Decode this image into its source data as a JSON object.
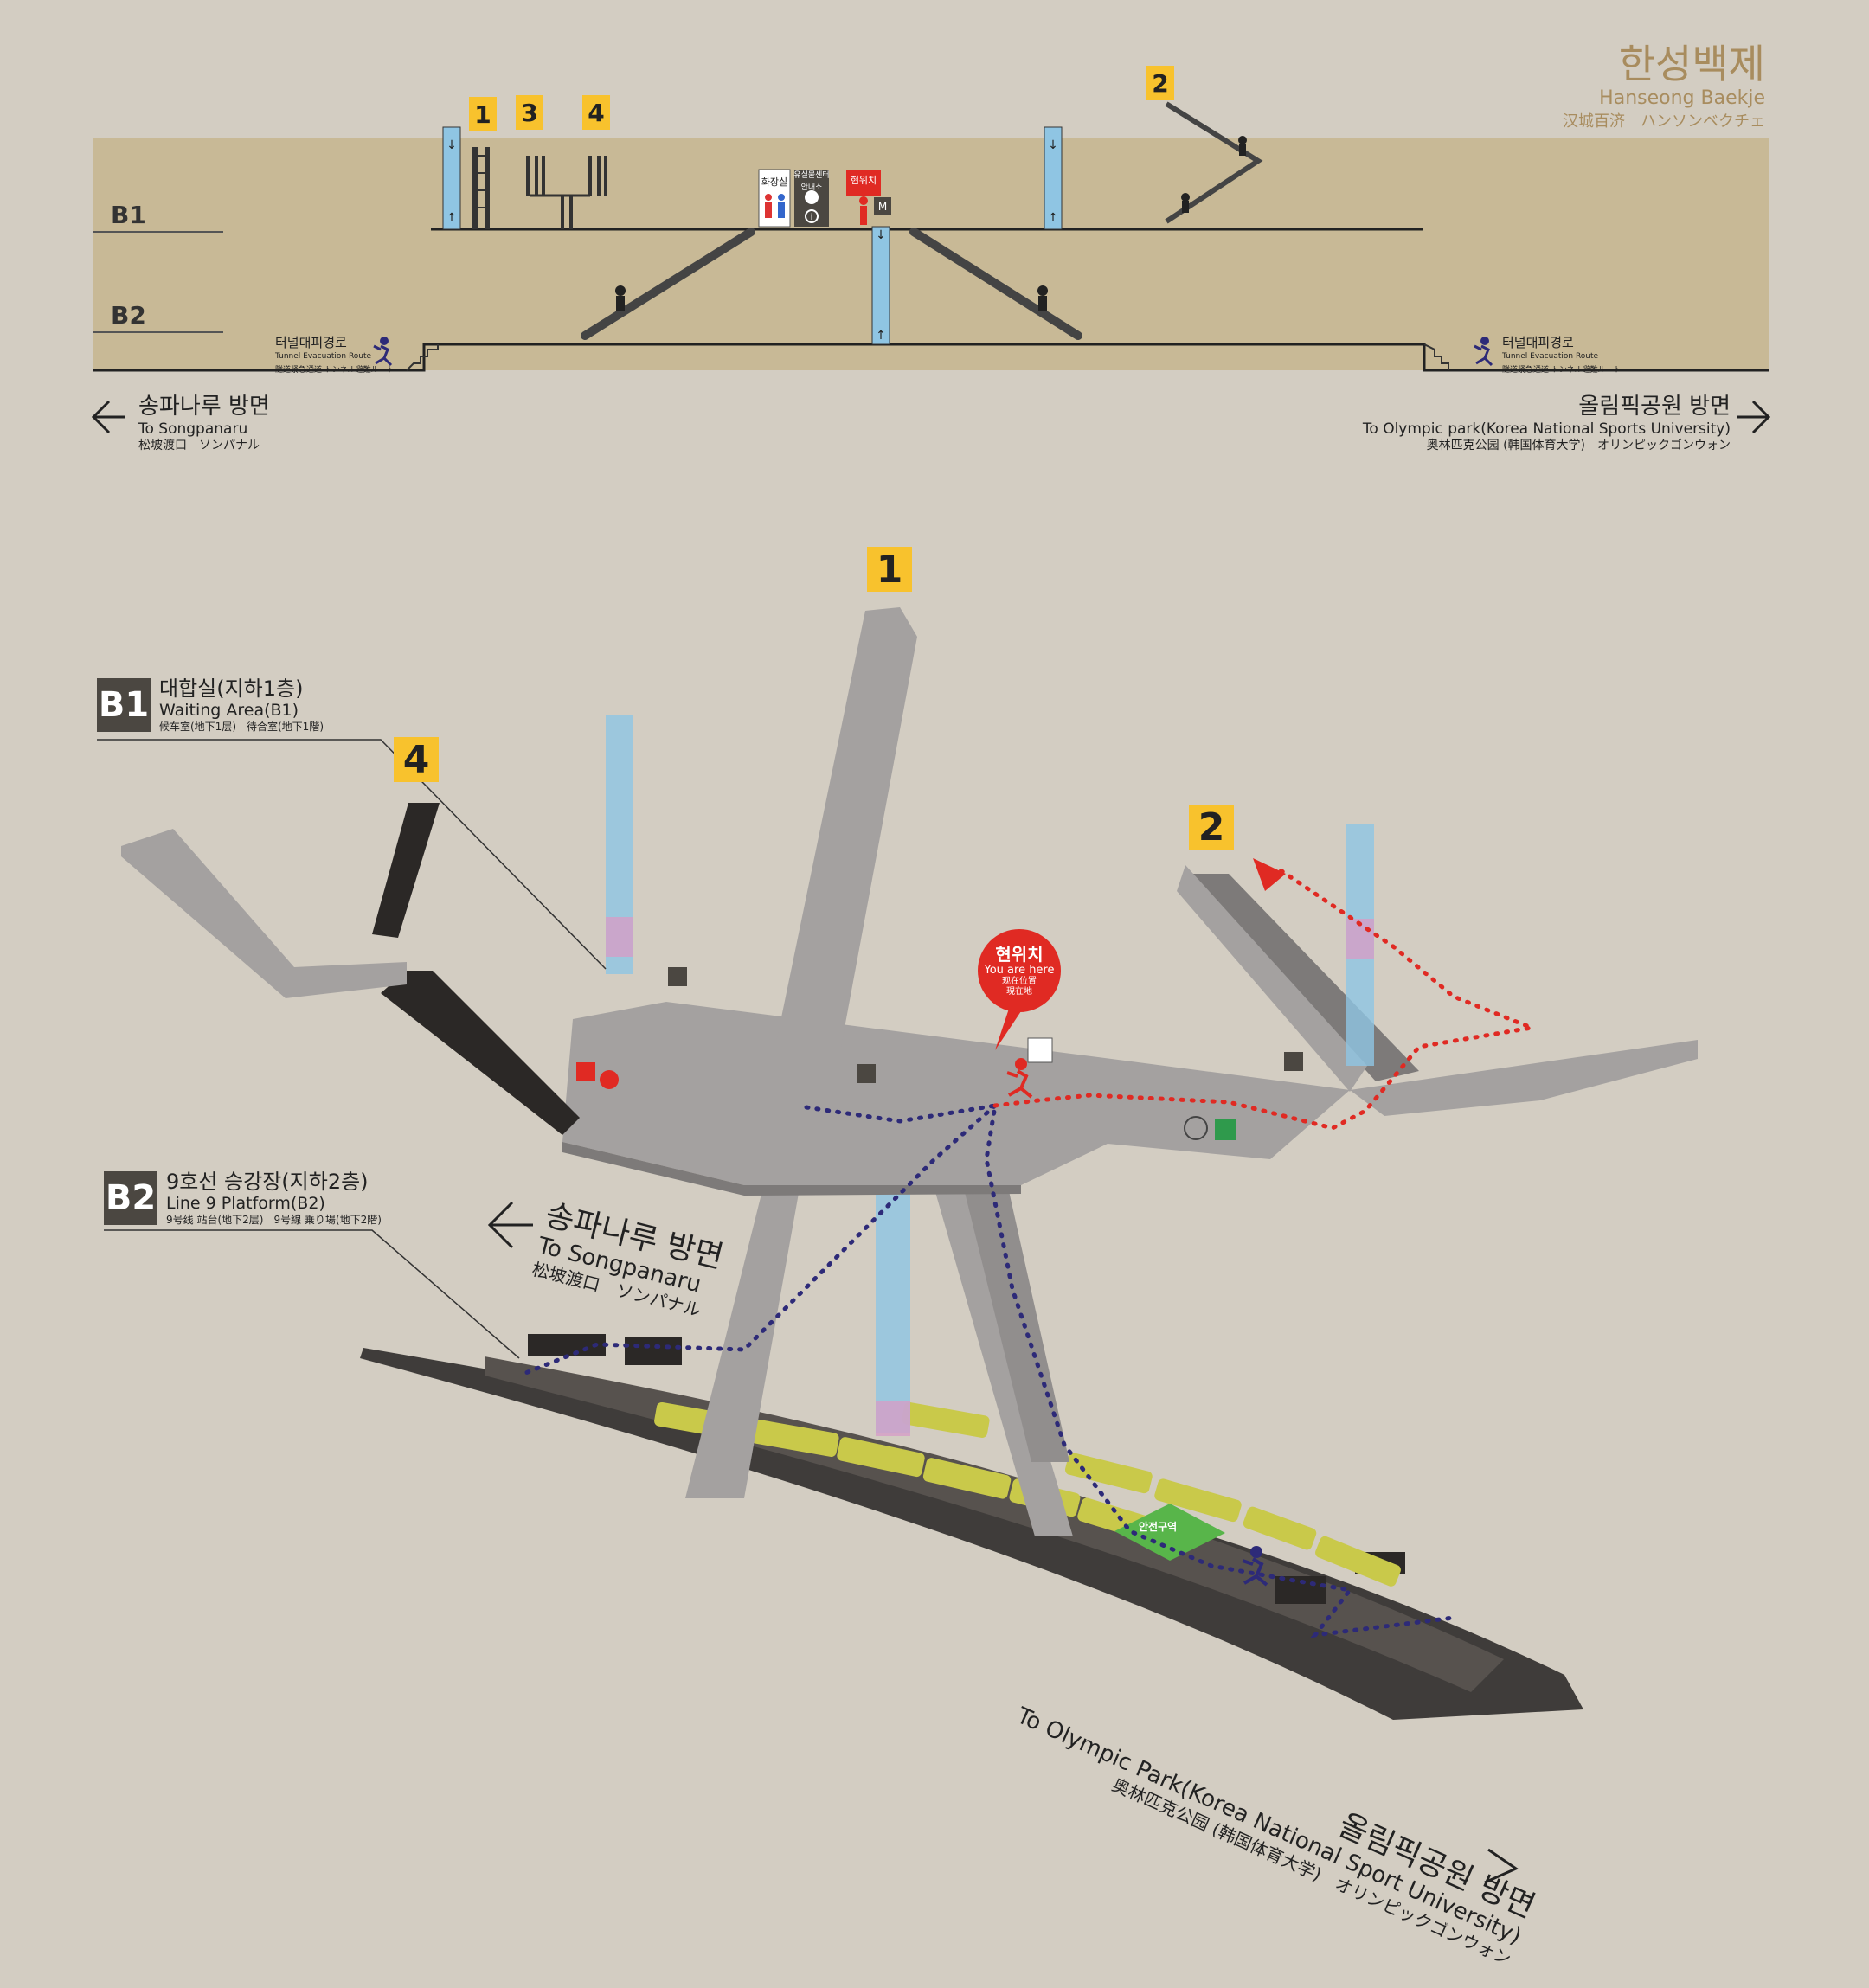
{
  "station": {
    "name_ko": "한성백제",
    "name_en": "Hanseong Baekje",
    "name_cjk": "汉城百济　ハンソンベクチェ"
  },
  "floors": {
    "b1": "B1",
    "b2": "B2"
  },
  "section": {
    "exits": [
      "1",
      "3",
      "4",
      "2"
    ],
    "facilities": {
      "restroom": "화장실",
      "lost_found": "유실물센터",
      "info": "안내소",
      "here_ko": "현위치"
    },
    "evac_left": {
      "ko": "터널대피경로",
      "en": "Tunnel Evacuation Route",
      "cj": "隧道紧急通道 トンネル避難ルート"
    },
    "evac_right": {
      "ko": "터널대피경로",
      "en": "Tunnel Evacuation Route",
      "cj": "隧道紧急通道 トンネル避難ルート"
    }
  },
  "directions": {
    "left": {
      "ko": "송파나루 방면",
      "en": "To Songpanaru",
      "cj": "松坡渡口　ソンパナル"
    },
    "right": {
      "ko": "올림픽공원 방면",
      "en": "To Olympic park(Korea National Sports University)",
      "cj": "奥林匹克公园 (韩国体育大学)　オリンピックゴンウォン"
    }
  },
  "iso": {
    "b1_area": {
      "badge": "B1",
      "ko": "대합실(지하1층)",
      "en": "Waiting Area(B1)",
      "cj": "候车室(地下1层)　待合室(地下1階)"
    },
    "b2_area": {
      "badge": "B2",
      "ko": "9호선 승강장(지하2층)",
      "en": "Line 9 Platform(B2)",
      "cj": "9号线 站台(地下2层)　9号線 乗り場(地下2階)"
    },
    "exits": {
      "e1": "1",
      "e2": "2",
      "e4": "4"
    },
    "you_are_here": {
      "ko": "현위치",
      "en": "You are here",
      "cj1": "现在位置",
      "cj2": "現在地"
    },
    "safe_zone": "안전구역",
    "to_songpanaru": {
      "ko": "송파나루 방면",
      "en": "To Songpanaru",
      "cj": "松坡渡口　ソンパナル"
    },
    "to_olympic": {
      "ko": "올림픽공원 방면",
      "en": "To Olympic Park(Korea National Sport University)",
      "cj": "奥林匹克公园 (韩国体育大学)　オリンピックゴンウォン"
    }
  },
  "colors": {
    "background": "#d3cdc2",
    "ground": "#c8b996",
    "exit_badge": "#f8c22d",
    "here_red": "#e02a23",
    "route_blue": "#2d2a78",
    "elevator_blue": "#8fc5e3",
    "concourse_gray": "#a4a1a0",
    "platform_dark": "#3f3c3a",
    "train_yellow": "#c9c94a"
  }
}
